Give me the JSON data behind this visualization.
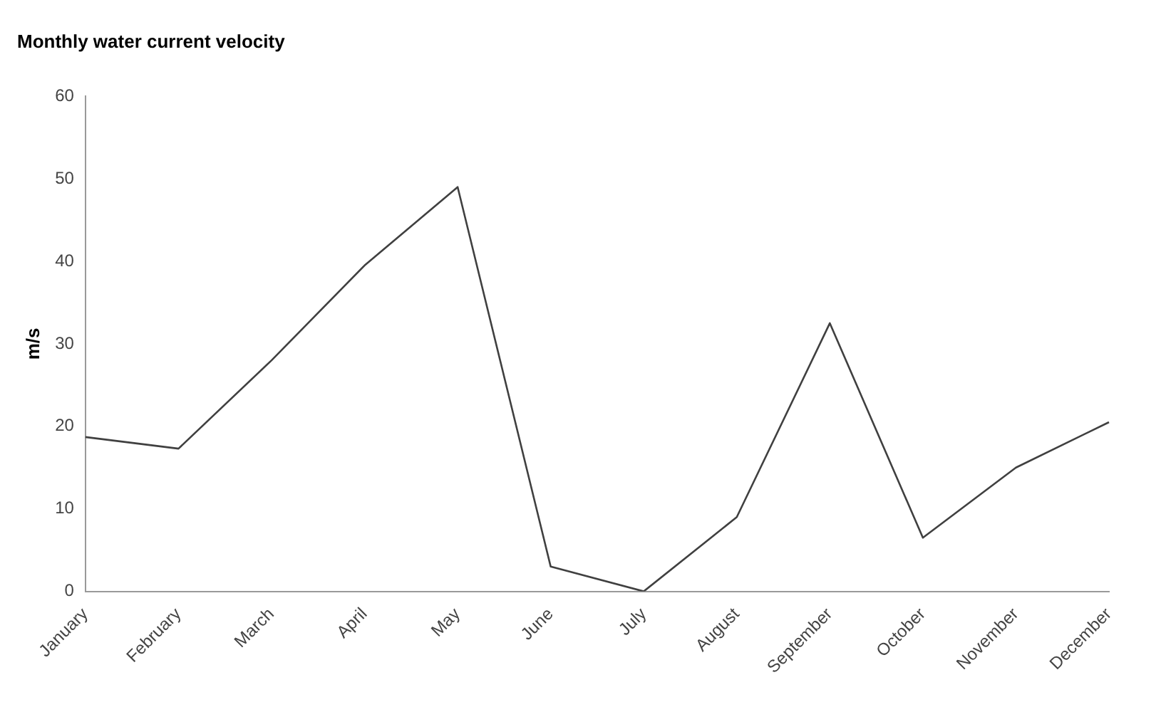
{
  "chart_data": {
    "type": "line",
    "title": "Monthly water current velocity",
    "ylabel": "m/s",
    "categories": [
      "January",
      "February",
      "March",
      "April",
      "May",
      "June",
      "July",
      "August",
      "September",
      "October",
      "November",
      "December"
    ],
    "series": [
      {
        "color": "#404040",
        "values": [
          18.7,
          17.3,
          28,
          39.5,
          49,
          3,
          0,
          9,
          32.5,
          6.5,
          15,
          20.5
        ]
      }
    ],
    "ylim": [
      0,
      60
    ],
    "yticks": [
      0,
      10,
      20,
      30,
      40,
      50,
      60
    ],
    "grid": false,
    "legend": false,
    "marker": "none",
    "line_style": "solid"
  }
}
